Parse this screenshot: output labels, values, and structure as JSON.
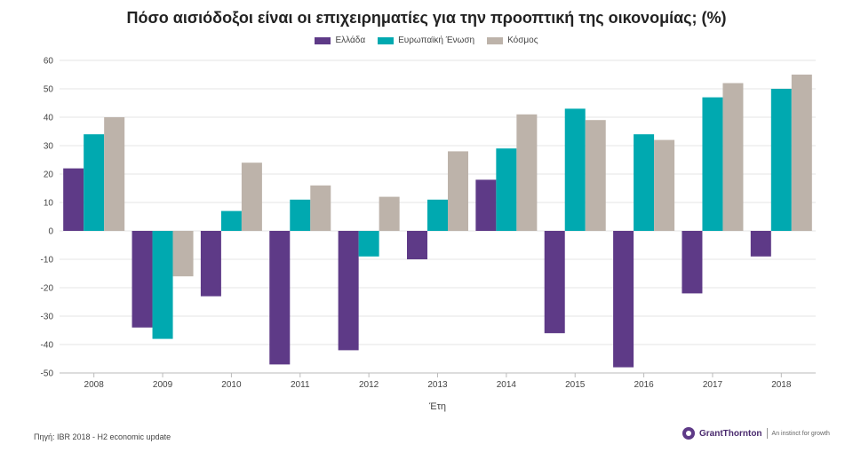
{
  "chart_data": {
    "type": "bar",
    "title": "Πόσο αισιόδοξοι είναι οι επιχειρηματίες για την προοπτική της οικονομίας; (%)",
    "xlabel": "Έτη",
    "ylabel": "",
    "ylim": [
      -50,
      60
    ],
    "yticks": [
      60,
      50,
      40,
      30,
      20,
      10,
      0,
      -10,
      -20,
      -30,
      -40,
      -50
    ],
    "grid": true,
    "legend_position": "top-center",
    "categories": [
      "2008",
      "2009",
      "2010",
      "2011",
      "2012",
      "2013",
      "2014",
      "2015",
      "2016",
      "2017",
      "2018"
    ],
    "series": [
      {
        "name": "Ελλάδα",
        "color": "#5e3a87",
        "values": [
          22,
          -34,
          -23,
          -47,
          -42,
          -10,
          18,
          -36,
          -48,
          -22,
          -9
        ]
      },
      {
        "name": "Ευρωπαϊκή Ένωση",
        "color": "#00a9b0",
        "values": [
          34,
          -38,
          7,
          11,
          -9,
          11,
          29,
          43,
          34,
          47,
          50
        ]
      },
      {
        "name": "Κόσμος",
        "color": "#bdb3aa",
        "values": [
          40,
          -16,
          24,
          16,
          12,
          28,
          41,
          39,
          32,
          52,
          55
        ]
      }
    ]
  },
  "footer": {
    "source": "Πηγή: IBR 2018 - H2 economic update",
    "brand_name": "GrantThornton",
    "brand_tagline": "An instinct for growth"
  }
}
